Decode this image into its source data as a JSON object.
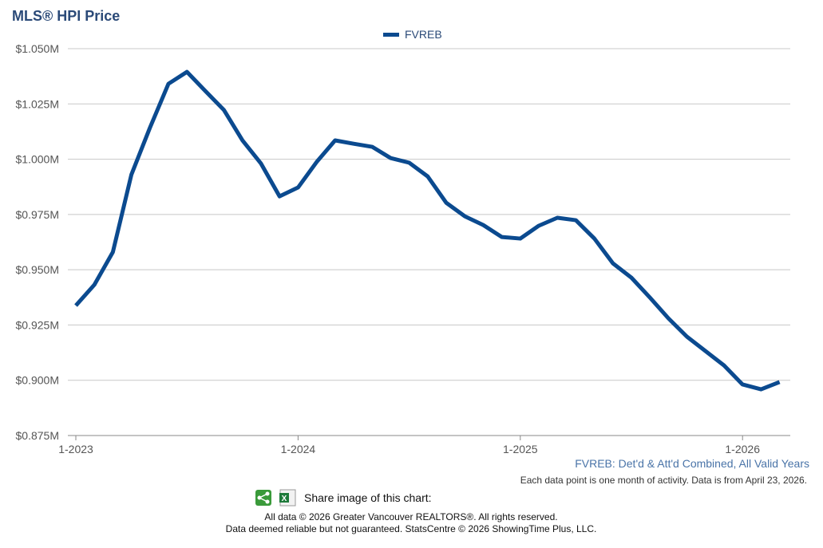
{
  "chart_data": {
    "type": "line",
    "title": "MLS® HPI Price",
    "categories": [
      "1-2023",
      null,
      null,
      null,
      null,
      null,
      null,
      null,
      null,
      null,
      null,
      null,
      "1-2024",
      null,
      null,
      null,
      null,
      null,
      null,
      null,
      null,
      null,
      null,
      null,
      "1-2025",
      null,
      null,
      null,
      null,
      null,
      null,
      null,
      null,
      null,
      null,
      null,
      "1-2026",
      null,
      null
    ],
    "series": [
      {
        "name": "FVREB",
        "color": "#0b4a8f",
        "values": [
          933800,
          943200,
          958000,
          993000,
          1014200,
          1034100,
          1039500,
          1030800,
          1022200,
          1008500,
          998000,
          983200,
          987200,
          998700,
          1008500,
          1007000,
          1005600,
          1000500,
          998400,
          992200,
          980300,
          974200,
          970200,
          964800,
          964100,
          969900,
          973500,
          972400,
          964100,
          952900,
          946400,
          937400,
          928000,
          919700,
          913200,
          906700,
          898100,
          895900,
          899200
        ]
      }
    ],
    "ylim": [
      875000,
      1050000
    ],
    "yticks": [
      {
        "value": 875000,
        "label": "$0.875M"
      },
      {
        "value": 900000,
        "label": "$0.900M"
      },
      {
        "value": 925000,
        "label": "$0.925M"
      },
      {
        "value": 950000,
        "label": "$0.950M"
      },
      {
        "value": 975000,
        "label": "$0.975M"
      },
      {
        "value": 1000000,
        "label": "$1.000M"
      },
      {
        "value": 1025000,
        "label": "$1.025M"
      },
      {
        "value": 1050000,
        "label": "$1.050M"
      }
    ],
    "grid": true,
    "legend": "top",
    "annotations": [
      "FVREB: Det'd & Att'd Combined, All Valid Years",
      "Each data point is one month of activity. Data is from April 23, 2026."
    ]
  },
  "footer": {
    "share_label": "Share image of this chart:",
    "copyright": "All data © 2026 Greater Vancouver REALTORS®. All rights reserved.",
    "disclaimer": "Data deemed reliable but not guaranteed. StatsCentre © 2026 ShowingTime Plus, LLC."
  }
}
